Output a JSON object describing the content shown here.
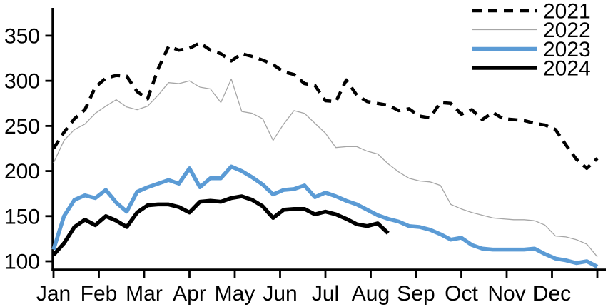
{
  "chart_data": {
    "type": "line",
    "title": "",
    "xlabel": "",
    "ylabel": "",
    "grid": false,
    "legend_position": "top-right",
    "x_axis": {
      "tick_labels": [
        "Jan",
        "Feb",
        "Mar",
        "Apr",
        "May",
        "Jun",
        "Jul",
        "Aug",
        "Sep",
        "Oct",
        "Nov",
        "Dec"
      ],
      "unit": "month-of-year, weekly data points"
    },
    "y_axis": {
      "tick_labels": [
        "100",
        "150",
        "200",
        "250",
        "300",
        "350"
      ],
      "tick_values": [
        100,
        150,
        200,
        250,
        300,
        350
      ],
      "range": [
        90,
        380
      ]
    },
    "series": [
      {
        "name": "2021",
        "style": "dashed",
        "color": "#000000",
        "stroke_width": 4.5,
        "values": [
          225,
          243,
          258,
          268,
          293,
          303,
          306,
          305,
          288,
          280,
          313,
          338,
          334,
          336,
          342,
          334,
          330,
          322,
          330,
          327,
          323,
          318,
          310,
          307,
          297,
          295,
          278,
          277,
          301,
          284,
          277,
          275,
          273,
          267,
          269,
          261,
          259,
          276,
          275,
          263,
          268,
          257,
          265,
          258,
          257,
          256,
          253,
          251,
          246,
          229,
          213,
          203,
          214
        ]
      },
      {
        "name": "2022",
        "style": "solid-thin",
        "color": "#a6a6a6",
        "stroke_width": 1.3,
        "values": [
          209,
          234,
          246,
          252,
          264,
          272,
          279,
          271,
          268,
          272,
          284,
          298,
          297,
          300,
          293,
          291,
          276,
          302,
          266,
          264,
          258,
          234,
          252,
          267,
          264,
          253,
          242,
          226,
          227,
          227,
          222,
          219,
          208,
          199,
          192,
          189,
          188,
          184,
          163,
          158,
          154,
          151,
          148,
          147,
          146,
          146,
          145,
          140,
          128,
          127,
          124,
          119,
          105
        ]
      },
      {
        "name": "2023",
        "style": "solid-thick",
        "color": "#5b9bd5",
        "stroke_width": 5.5,
        "values": [
          113,
          150,
          168,
          173,
          170,
          179,
          165,
          155,
          177,
          182,
          186,
          190,
          186,
          203,
          182,
          192,
          192,
          205,
          200,
          193,
          185,
          174,
          179,
          180,
          184,
          171,
          176,
          172,
          167,
          163,
          157,
          151,
          147,
          144,
          139,
          138,
          135,
          130,
          124,
          126,
          118,
          114,
          113,
          113,
          113,
          113,
          114,
          108,
          103,
          101,
          98,
          100,
          94
        ]
      },
      {
        "name": "2024",
        "style": "solid-thick",
        "color": "#000000",
        "stroke_width": 5.5,
        "values": [
          107,
          120,
          138,
          146,
          140,
          150,
          145,
          138,
          154,
          162,
          163,
          163,
          160,
          154,
          166,
          167,
          166,
          170,
          172,
          168,
          161,
          148,
          157,
          158,
          158,
          152,
          155,
          152,
          147,
          141,
          139,
          142,
          131
        ]
      }
    ]
  },
  "legend": {
    "items": [
      {
        "label": "2021"
      },
      {
        "label": "2022"
      },
      {
        "label": "2023"
      },
      {
        "label": "2024"
      }
    ]
  }
}
